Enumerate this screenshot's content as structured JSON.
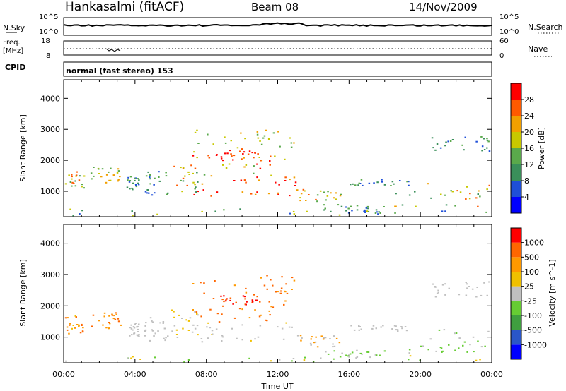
{
  "header": {
    "station": "Hankasalmi (fitACF)",
    "beam": "Beam 08",
    "date": "14/Nov/2009"
  },
  "noise_panel": {
    "left_label": "N.Sky",
    "right_label": "N.Search",
    "left_ticks": [
      "10^5",
      "10^0"
    ],
    "right_ticks": [
      "10^5",
      "10^0"
    ]
  },
  "freq_panel": {
    "left_label_line1": "Freq.",
    "left_label_line2": "[MHz]",
    "left_ticks": [
      "18",
      "8"
    ],
    "right_label": "Nave",
    "right_ticks": [
      "60",
      "0"
    ]
  },
  "cpid_panel": {
    "label": "CPID",
    "text": "normal (fast stereo) 153"
  },
  "colors": {
    "power_scale": [
      "#0000ff",
      "#1f4fd8",
      "#3a8f5a",
      "#5aa94b",
      "#c8c800",
      "#f2a000",
      "#ff5a00",
      "#ff0000"
    ],
    "velocity_scale": [
      "#0000ff",
      "#2a56c8",
      "#3f9f3f",
      "#66cc33",
      "#c0c0c0",
      "#f0c000",
      "#ff9900",
      "#ff6600",
      "#ff0000"
    ]
  },
  "chart_data": [
    {
      "type": "heatmap",
      "ylabel": "Slant Range [km]",
      "xlabel": "",
      "x_ticks": [
        "00:00",
        "04:00",
        "08:00",
        "12:00",
        "16:00",
        "20:00",
        "00:00"
      ],
      "y_ticks": [
        1000,
        2000,
        3000,
        4000
      ],
      "ylim": [
        180,
        4600
      ],
      "xlim_hours": [
        0,
        24
      ],
      "colorbar_label": "Power [dB]",
      "colorbar_ticks": [
        "28",
        "24",
        "20",
        "16",
        "12",
        "8",
        "4"
      ]
    },
    {
      "type": "heatmap",
      "ylabel": "Slant Range [km]",
      "xlabel": "Time UT",
      "x_ticks": [
        "00:00",
        "04:00",
        "08:00",
        "12:00",
        "16:00",
        "20:00",
        "00:00"
      ],
      "y_ticks": [
        1000,
        2000,
        3000,
        4000
      ],
      "ylim": [
        180,
        4600
      ],
      "xlim_hours": [
        0,
        24
      ],
      "colorbar_label": "Velocity [m s^-1]",
      "colorbar_ticks": [
        "1000",
        "500",
        "100",
        "25",
        "-25",
        "-100",
        "-500",
        "-1000"
      ]
    }
  ]
}
